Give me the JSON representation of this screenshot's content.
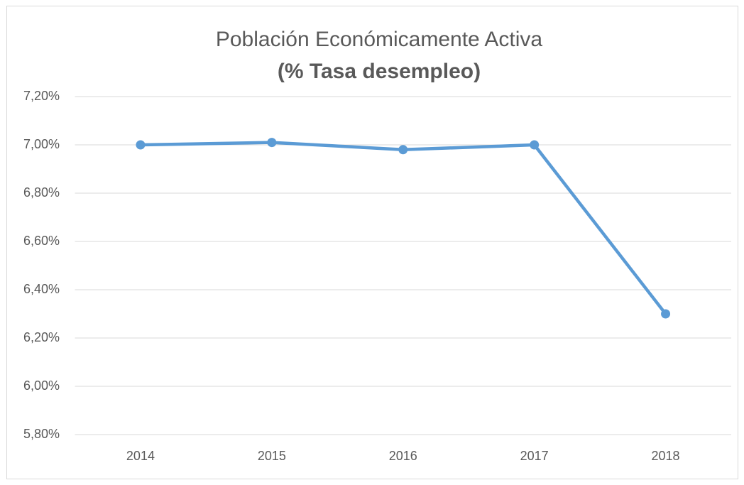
{
  "chart_data": {
    "type": "line",
    "title": "Población Económicamente Activa",
    "subtitle": "(% Tasa desempleo)",
    "categories": [
      "2014",
      "2015",
      "2016",
      "2017",
      "2018"
    ],
    "values": [
      7.0,
      7.01,
      6.98,
      7.0,
      6.3
    ],
    "color": "#5b9bd5",
    "ylim": [
      5.8,
      7.2
    ],
    "yticks": [
      {
        "value": 5.8,
        "label": "5,80%"
      },
      {
        "value": 6.0,
        "label": "6,00%"
      },
      {
        "value": 6.2,
        "label": "6,20%"
      },
      {
        "value": 6.4,
        "label": "6,40%"
      },
      {
        "value": 6.6,
        "label": "6,60%"
      },
      {
        "value": 6.8,
        "label": "6,80%"
      },
      {
        "value": 7.0,
        "label": "7,00%"
      },
      {
        "value": 7.2,
        "label": "7,20%"
      }
    ],
    "grid": true
  }
}
